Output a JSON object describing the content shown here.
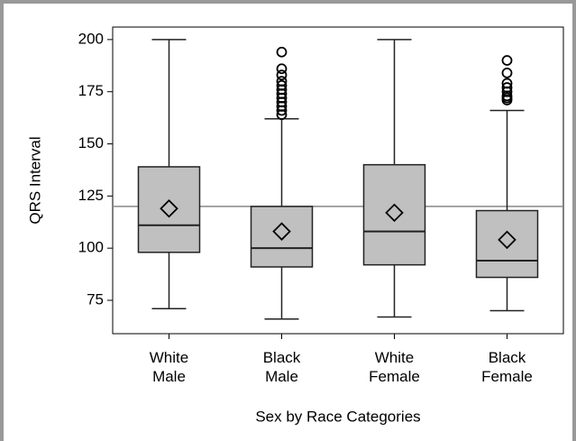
{
  "chart_data": {
    "type": "box",
    "ylabel": "QRS Interval",
    "xlabel": "Sex by Race Categories",
    "categories": [
      "White Male",
      "Black Male",
      "White Female",
      "Black Female"
    ],
    "boxes": [
      {
        "min": 71,
        "q1": 98,
        "median": 111,
        "q3": 139,
        "max": 200,
        "mean": 119,
        "outliers": []
      },
      {
        "min": 66,
        "q1": 91,
        "median": 100,
        "q3": 120,
        "max": 162,
        "mean": 108,
        "outliers": [
          164,
          166,
          168,
          170,
          172,
          174,
          176,
          178,
          180,
          183,
          186,
          194
        ]
      },
      {
        "min": 67,
        "q1": 92,
        "median": 108,
        "q3": 140,
        "max": 200,
        "mean": 117,
        "outliers": []
      },
      {
        "min": 70,
        "q1": 86,
        "median": 94,
        "q3": 118,
        "max": 166,
        "mean": 104,
        "outliers": [
          171,
          172,
          173,
          175,
          177,
          179,
          184,
          190
        ]
      }
    ],
    "color": "#c0c0c0",
    "reference_line": 120,
    "ylim": [
      59,
      206
    ],
    "yticks": [
      75,
      100,
      125,
      150,
      175,
      200
    ]
  }
}
